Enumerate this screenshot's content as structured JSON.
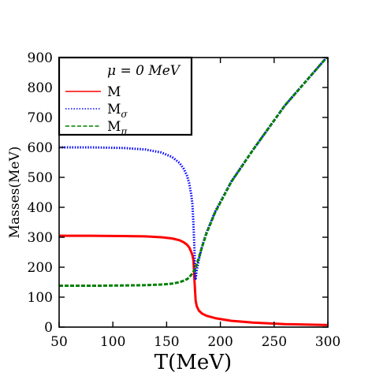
{
  "chart_data": {
    "type": "line",
    "title": "",
    "xlabel": "T(MeV)",
    "ylabel": "Masses(MeV)",
    "xlim": [
      50,
      300
    ],
    "ylim": [
      0,
      900
    ],
    "xticks": [
      50,
      100,
      150,
      200,
      250,
      300
    ],
    "yticks": [
      0,
      100,
      200,
      300,
      400,
      500,
      600,
      700,
      800,
      900
    ],
    "grid": false,
    "legend": {
      "placement": "top-left",
      "title": "μ = 0 MeV"
    },
    "series": [
      {
        "name": "M",
        "subscript": "",
        "color": "#ff0000",
        "style": "solid",
        "x": [
          50,
          80,
          110,
          130,
          145,
          155,
          162,
          166,
          169,
          171,
          173,
          174,
          175,
          176,
          177,
          178,
          180,
          183,
          187,
          195,
          210,
          230,
          260,
          300
        ],
        "y": [
          305,
          305,
          304,
          303,
          300,
          296,
          290,
          283,
          275,
          266,
          250,
          240,
          222,
          150,
          88,
          70,
          55,
          45,
          38,
          30,
          21,
          15,
          10,
          7
        ]
      },
      {
        "name": "M",
        "subscript": "σ",
        "color": "#0000ff",
        "style": "dotted",
        "x": [
          50,
          80,
          110,
          130,
          145,
          155,
          162,
          166,
          169,
          171,
          173,
          174,
          175,
          176,
          176.5,
          177,
          178,
          180,
          183,
          187,
          195,
          210,
          230,
          260,
          300
        ],
        "y": [
          600,
          600,
          598,
          593,
          583,
          568,
          548,
          528,
          505,
          480,
          440,
          410,
          340,
          250,
          175,
          162,
          190,
          225,
          270,
          315,
          385,
          485,
          590,
          740,
          905
        ]
      },
      {
        "name": "M",
        "subscript": "π",
        "color": "#008000",
        "style": "dashed",
        "x": [
          50,
          80,
          110,
          130,
          145,
          155,
          162,
          166,
          169,
          171,
          173,
          175,
          176,
          177,
          178,
          180,
          183,
          187,
          195,
          210,
          230,
          260,
          300
        ],
        "y": [
          138,
          138,
          139,
          140,
          142,
          145,
          150,
          155,
          160,
          166,
          175,
          185,
          192,
          198,
          210,
          232,
          268,
          312,
          382,
          484,
          590,
          740,
          905
        ]
      }
    ]
  }
}
